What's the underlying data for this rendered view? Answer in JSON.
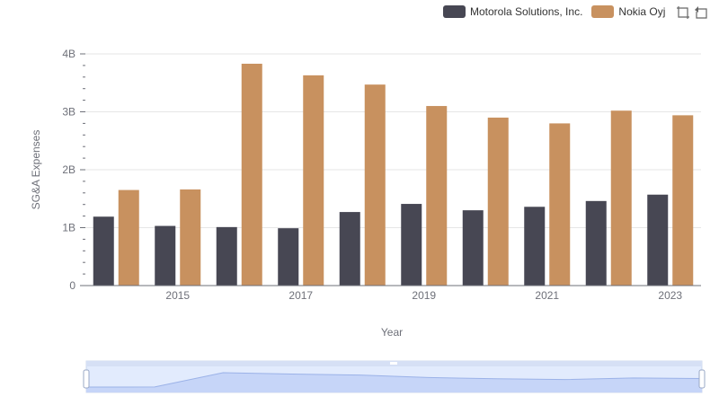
{
  "legend": {
    "items": [
      {
        "name": "Motorola Solutions, Inc.",
        "color": "#474753"
      },
      {
        "name": "Nokia Oyj",
        "color": "#c8915f"
      }
    ]
  },
  "toolbox": {
    "icons": [
      "zoom-icon",
      "restore-icon"
    ]
  },
  "chart_data": {
    "type": "bar",
    "x": [
      2014,
      2015,
      2016,
      2017,
      2018,
      2019,
      2020,
      2021,
      2022,
      2023
    ],
    "x_tick_labels": [
      "2015",
      "2017",
      "2019",
      "2021",
      "2023"
    ],
    "y_tick_labels": [
      "0",
      "1B",
      "2B",
      "3B",
      "4B"
    ],
    "xlabel": "Year",
    "ylabel": "SG&A Expenses",
    "ylim": [
      0,
      4000000000
    ],
    "grid": true,
    "legend_position": "top-right",
    "series": [
      {
        "name": "Motorola Solutions, Inc.",
        "color": "#474753",
        "values": [
          1190000000,
          1030000000,
          1010000000,
          990000000,
          1270000000,
          1410000000,
          1300000000,
          1360000000,
          1460000000,
          1570000000
        ]
      },
      {
        "name": "Nokia Oyj",
        "color": "#c8915f",
        "values": [
          1650000000,
          1660000000,
          3830000000,
          3630000000,
          3470000000,
          3100000000,
          2900000000,
          2800000000,
          3020000000,
          2940000000
        ]
      }
    ],
    "data_zoom": {
      "start_percent": 0,
      "end_percent": 100
    }
  }
}
